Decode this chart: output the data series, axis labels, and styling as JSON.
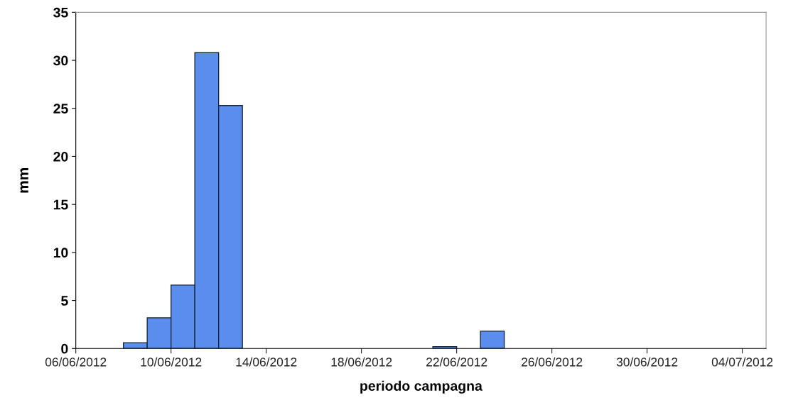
{
  "chart_data": {
    "type": "bar",
    "xlabel": "periodo campagna",
    "ylabel": "mm",
    "x": [
      "2012-06-08T12:00",
      "2012-06-09T12:00",
      "2012-06-10T12:00",
      "2012-06-11T12:00",
      "2012-06-12T12:00",
      "2012-06-21T12:00",
      "2012-06-23T12:00"
    ],
    "values": [
      0.6,
      3.2,
      6.6,
      30.8,
      25.3,
      0.2,
      1.8
    ],
    "color": "#5b8def",
    "xlim": [
      "2012-06-06",
      "2012-07-05"
    ],
    "xticks": [
      {
        "value": "2012-06-06",
        "label": "06/06/2012"
      },
      {
        "value": "2012-06-10",
        "label": "10/06/2012"
      },
      {
        "value": "2012-06-14",
        "label": "14/06/2012"
      },
      {
        "value": "2012-06-18",
        "label": "18/06/2012"
      },
      {
        "value": "2012-06-22",
        "label": "22/06/2012"
      },
      {
        "value": "2012-06-26",
        "label": "26/06/2012"
      },
      {
        "value": "2012-06-30",
        "label": "30/06/2012"
      },
      {
        "value": "2012-07-04",
        "label": "04/07/2012"
      }
    ],
    "ylim": [
      0,
      35
    ],
    "yticks": [
      0,
      5,
      10,
      15,
      20,
      25,
      30,
      35
    ],
    "grid": false
  }
}
